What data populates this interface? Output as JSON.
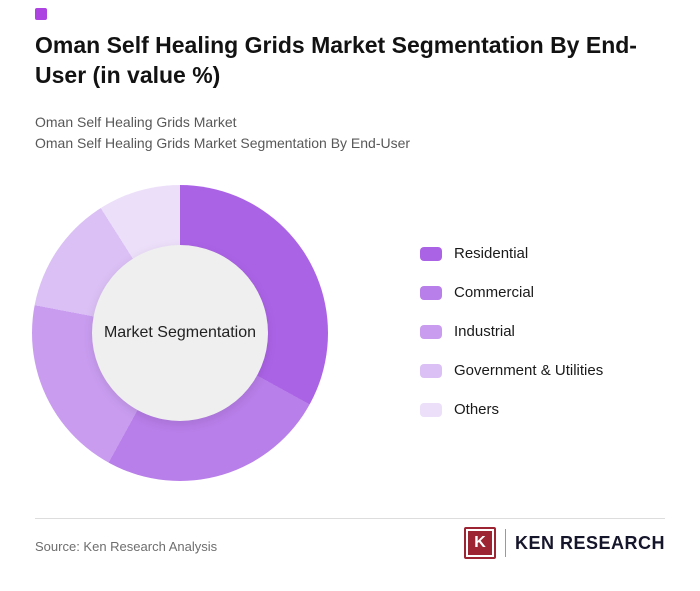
{
  "page": {
    "accent_color": "#ad43e0",
    "title": "Oman Self Healing Grids Market Segmentation By End-User (in value %)",
    "subtitle_line1": "Oman Self Healing Grids Market",
    "subtitle_line2": "Oman Self Healing Grids Market Segmentation By End-User",
    "source": "Source: Ken Research Analysis",
    "brand": {
      "logo_letter": "K",
      "logo_text": "KEN RESEARCH",
      "logo_color": "#9d2433"
    }
  },
  "chart_data": {
    "type": "pie",
    "donut": true,
    "title": "Oman Self Healing Grids Market Segmentation By End-User (in value %)",
    "center_label": "Market Segmentation",
    "categories": [
      "Residential",
      "Commercial",
      "Industrial",
      "Government & Utilities",
      "Others"
    ],
    "values": [
      33,
      25,
      20,
      13,
      9
    ],
    "colors": [
      "#ab63e6",
      "#b87ee9",
      "#c99cf0",
      "#dbc0f5",
      "#ecdffa"
    ],
    "legend_position": "right",
    "start_angle_deg": 0,
    "direction": "clockwise"
  }
}
